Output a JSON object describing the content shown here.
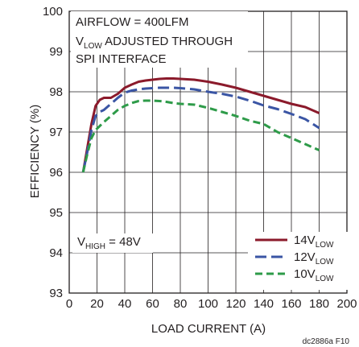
{
  "chart_data": {
    "type": "line",
    "title": "",
    "xlabel": "LOAD CURRENT (A)",
    "ylabel": "EFFICIENCY (%)",
    "xlim": [
      0,
      200
    ],
    "ylim": [
      93,
      100
    ],
    "xticks": [
      0,
      20,
      40,
      60,
      80,
      100,
      120,
      140,
      160,
      180,
      200
    ],
    "yticks": [
      93,
      94,
      95,
      96,
      97,
      98,
      99,
      100
    ],
    "grid": true,
    "legend_position": "bottom-right",
    "annotations": {
      "line1": "AIRFLOW = 400LFM",
      "line2_main": "V",
      "line2_sub": "LOW",
      "line2_rest": " ADJUSTED THROUGH",
      "line3": "SPI INTERFACE",
      "vhigh_main": "V",
      "vhigh_sub": "HIGH",
      "vhigh_rest": " = 48V"
    },
    "series": [
      {
        "name": "14V",
        "name_sub": "LOW",
        "color": "#8b1a2b",
        "dash": "solid",
        "x": [
          10,
          13,
          16,
          19,
          22,
          25,
          30,
          35,
          40,
          45,
          50,
          55,
          60,
          65,
          70,
          75,
          80,
          90,
          100,
          110,
          120,
          130,
          140,
          150,
          160,
          170,
          180
        ],
        "y": [
          96.0,
          96.6,
          97.2,
          97.65,
          97.8,
          97.85,
          97.85,
          97.95,
          98.1,
          98.18,
          98.25,
          98.28,
          98.3,
          98.32,
          98.33,
          98.33,
          98.32,
          98.3,
          98.25,
          98.18,
          98.1,
          98.0,
          97.9,
          97.8,
          97.7,
          97.62,
          97.47
        ]
      },
      {
        "name": "12V",
        "name_sub": "LOW",
        "color": "#3a55a4",
        "dash": "long",
        "x": [
          10,
          13,
          16,
          19,
          22,
          25,
          30,
          35,
          40,
          45,
          50,
          55,
          60,
          65,
          70,
          75,
          80,
          90,
          100,
          110,
          120,
          130,
          140,
          150,
          160,
          170,
          180
        ],
        "y": [
          96.0,
          96.5,
          97.05,
          97.4,
          97.5,
          97.55,
          97.7,
          97.85,
          97.98,
          98.03,
          98.06,
          98.08,
          98.09,
          98.1,
          98.1,
          98.1,
          98.09,
          98.06,
          98.0,
          97.95,
          97.88,
          97.78,
          97.66,
          97.57,
          97.45,
          97.32,
          97.1
        ]
      },
      {
        "name": "10V",
        "name_sub": "LOW",
        "color": "#2e9b49",
        "dash": "medium",
        "x": [
          10,
          13,
          16,
          19,
          22,
          25,
          30,
          35,
          40,
          45,
          50,
          55,
          60,
          65,
          70,
          75,
          80,
          90,
          100,
          110,
          120,
          130,
          140,
          150,
          160,
          170,
          180
        ],
        "y": [
          96.0,
          96.45,
          96.85,
          97.05,
          97.15,
          97.25,
          97.4,
          97.55,
          97.65,
          97.72,
          97.77,
          97.78,
          97.78,
          97.77,
          97.75,
          97.72,
          97.7,
          97.68,
          97.6,
          97.5,
          97.4,
          97.28,
          97.2,
          97.0,
          96.85,
          96.7,
          96.55
        ]
      }
    ]
  },
  "footer_note": "dc2886a F10"
}
